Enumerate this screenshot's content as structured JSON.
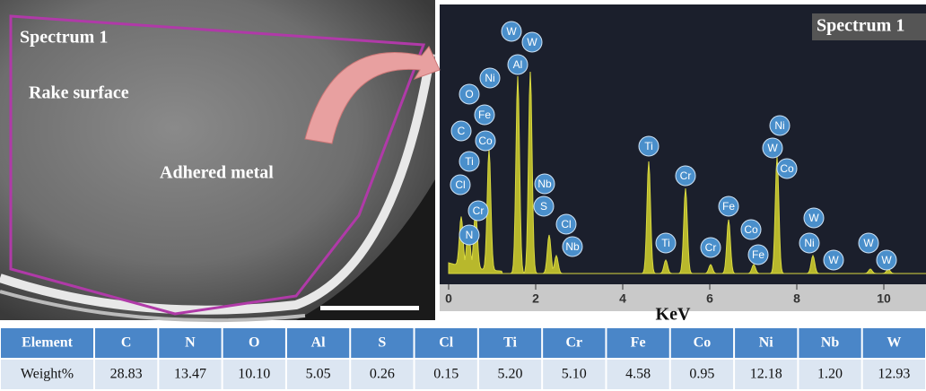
{
  "image_panel": {
    "spectrum_label": "Spectrum 1",
    "region_labels": [
      "Rake surface",
      "Adhered metal"
    ]
  },
  "spectrum": {
    "label": "Spectrum 1",
    "x_label": "KeV",
    "xlim": [
      0,
      10.5
    ],
    "xticks": [
      0,
      2,
      4,
      6,
      8,
      10
    ],
    "peak_labels": [
      "W",
      "W",
      "Al",
      "Ni",
      "O",
      "Fe",
      "C",
      "Co",
      "Ti",
      "Cl",
      "Cr",
      "N",
      "Nb",
      "S",
      "Cl",
      "Nb",
      "Ti",
      "Ti",
      "Cr",
      "Cr",
      "Fe",
      "Co",
      "Fe",
      "Ni",
      "W",
      "Co",
      "W",
      "Ni",
      "W",
      "W",
      "W"
    ]
  },
  "table": {
    "rows": [
      [
        "Element",
        "C",
        "N",
        "O",
        "Al",
        "S",
        "Cl",
        "Ti",
        "Cr",
        "Fe",
        "Co",
        "Ni",
        "Nb",
        "W"
      ],
      [
        "Weight%",
        "28.83",
        "13.47",
        "10.10",
        "5.05",
        "0.26",
        "0.15",
        "5.20",
        "5.10",
        "4.58",
        "0.95",
        "12.18",
        "1.20",
        "12.93"
      ]
    ]
  }
}
